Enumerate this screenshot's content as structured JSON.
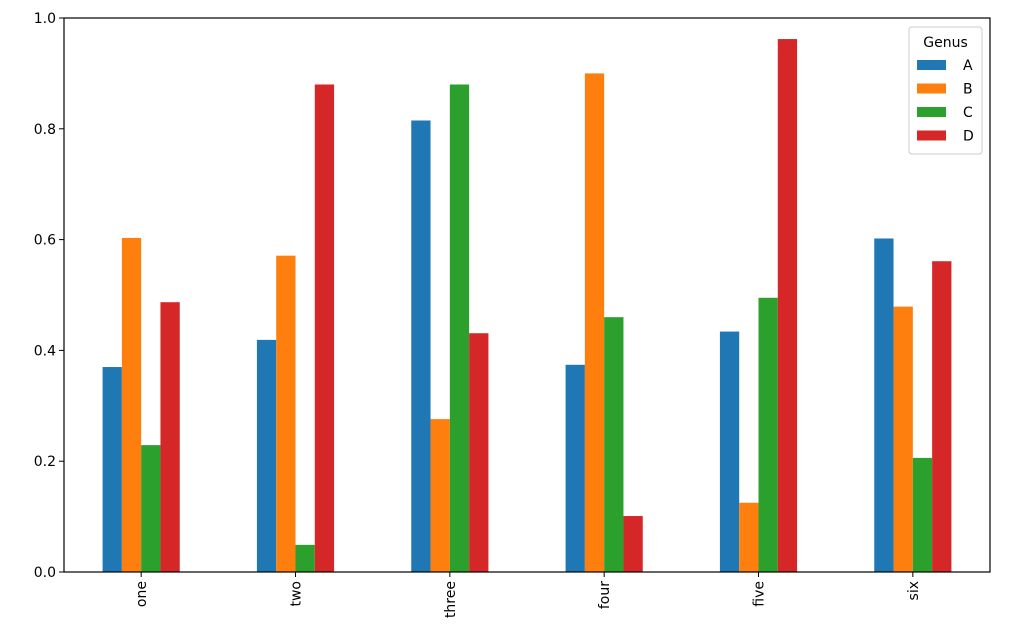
{
  "chart_data": {
    "type": "bar",
    "categories": [
      "one",
      "two",
      "three",
      "four",
      "five",
      "six"
    ],
    "series": [
      {
        "name": "A",
        "color": "#1f77b4",
        "values": [
          0.37,
          0.419,
          0.815,
          0.374,
          0.434,
          0.602
        ]
      },
      {
        "name": "B",
        "color": "#ff7f0e",
        "values": [
          0.603,
          0.571,
          0.276,
          0.9,
          0.125,
          0.479
        ]
      },
      {
        "name": "C",
        "color": "#2ca02c",
        "values": [
          0.229,
          0.049,
          0.88,
          0.46,
          0.495,
          0.206
        ]
      },
      {
        "name": "D",
        "color": "#d62728",
        "values": [
          0.487,
          0.88,
          0.431,
          0.101,
          0.962,
          0.561
        ]
      }
    ],
    "title": "",
    "xlabel": "",
    "ylabel": "",
    "ylim": [
      0,
      1.0
    ],
    "yticks": [
      0.0,
      0.2,
      0.4,
      0.6,
      0.8,
      1.0
    ],
    "ytick_labels": [
      "0.0",
      "0.2",
      "0.4",
      "0.6",
      "0.8",
      "1.0"
    ],
    "legend": {
      "title": "Genus",
      "placement": "top-right"
    },
    "grid": false
  }
}
